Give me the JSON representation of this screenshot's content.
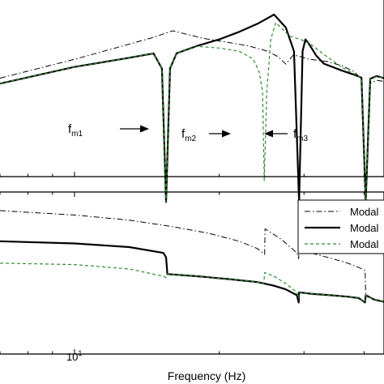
{
  "chart_data": [
    {
      "type": "line",
      "xscale": "log",
      "xlim": [
        7.0,
        44.0
      ],
      "grid": false,
      "legend": "none",
      "series": [
        {
          "style": "dash-dot",
          "color": "#000000",
          "x": [
            7.0,
            10.0,
            14.5,
            16.0,
            18.5,
            21.0,
            23.0,
            25.0,
            26.5,
            27.5,
            28.5,
            29.5,
            30.5,
            31.5,
            33.5,
            36.0,
            38.0,
            39.5,
            40.3,
            41.2,
            42.5,
            44.0
          ],
          "y": [
            -1.0,
            2.5,
            6.5,
            7.8,
            6.4,
            5.6,
            5.0,
            4.1,
            3.0,
            1.6,
            3.3,
            3.0,
            2.6,
            2.4,
            2.1,
            1.3,
            0.3,
            -1.1,
            -24.0,
            -1.9,
            -1.4,
            -1.6
          ]
        },
        {
          "style": "solid",
          "color": "#000000",
          "x": [
            7.0,
            10.0,
            13.0,
            14.6,
            15.2,
            15.5,
            15.8,
            16.3,
            18.0,
            20.0,
            22.0,
            24.0,
            26.0,
            27.5,
            28.6,
            29.3,
            29.8,
            30.2,
            30.7,
            31.2,
            31.8,
            33.0,
            36.0,
            38.0,
            39.5,
            40.3,
            41.2,
            42.5,
            44.0
          ],
          "y": [
            -2.0,
            1.1,
            2.8,
            3.6,
            0.8,
            -24.0,
            0.8,
            3.6,
            5.0,
            6.2,
            7.6,
            9.1,
            10.8,
            8.4,
            4.0,
            -24.0,
            4.0,
            6.2,
            5.4,
            4.4,
            3.2,
            1.7,
            0.4,
            -0.3,
            -0.9,
            -24.0,
            -1.1,
            -0.6,
            -1.0
          ]
        },
        {
          "style": "dashed",
          "color": "#2e8b2e",
          "x": [
            7.0,
            10.0,
            13.0,
            14.6,
            15.2,
            15.5,
            15.8,
            16.3,
            18.0,
            20.0,
            22.0,
            23.5,
            24.2,
            24.6,
            24.8,
            25.1,
            25.6,
            26.2,
            27.0,
            28.0,
            29.5,
            31.0,
            33.0,
            36.0,
            38.0,
            39.5,
            40.3,
            41.2,
            42.5,
            44.0
          ],
          "y": [
            -2.0,
            1.1,
            2.8,
            3.6,
            0.8,
            -24.0,
            0.8,
            3.6,
            4.9,
            4.6,
            4.0,
            2.6,
            0.2,
            -3.5,
            -20.0,
            -3.5,
            6.2,
            9.3,
            8.2,
            6.8,
            6.2,
            5.3,
            3.4,
            1.0,
            -0.1,
            -1.0,
            -24.0,
            -1.2,
            -0.7,
            -1.0
          ]
        }
      ],
      "annotations": [
        {
          "main": "f",
          "sub": "m1",
          "x": 15.5
        },
        {
          "main": "f",
          "sub": "m2",
          "x": 24.8
        },
        {
          "main": "f",
          "sub": "m3",
          "x": 29.3
        }
      ]
    },
    {
      "type": "line",
      "xscale": "log",
      "xlim": [
        7.0,
        44.0
      ],
      "xlabel": "Frequency  (Hz)",
      "grid": false,
      "legend": "top-right",
      "x_ticks": [
        {
          "value": 10,
          "base": "10",
          "exp": "1"
        }
      ],
      "series": [
        {
          "name": "Modal",
          "style": "dash-dot",
          "color": "#000000",
          "x": [
            7.0,
            10.0,
            13.0,
            16.0,
            19.0,
            22.0,
            24.0,
            24.85,
            24.9,
            27.0,
            29.0,
            29.25,
            29.3,
            31.0,
            34.0,
            37.0,
            39.0,
            40.2,
            40.3,
            42.0,
            44.0
          ],
          "y": [
            -8.0,
            -8.6,
            -9.3,
            -10.2,
            -11.1,
            -12.2,
            -13.2,
            -14.0,
            -10.5,
            -12.0,
            -13.8,
            -14.6,
            -12.3,
            -13.8,
            -14.5,
            -15.2,
            -15.8,
            -16.2,
            -19.5,
            -20.2,
            -20.5
          ]
        },
        {
          "name": "Modal",
          "style": "solid",
          "color": "#000000",
          "x": [
            7.0,
            10.0,
            13.0,
            15.3,
            15.5,
            15.6,
            18.0,
            21.0,
            24.0,
            26.0,
            27.5,
            29.0,
            29.25,
            29.3,
            31.0,
            34.0,
            37.0,
            39.0,
            40.2,
            40.3,
            42.0,
            44.0
          ],
          "y": [
            -12.2,
            -12.5,
            -13.0,
            -13.8,
            -14.4,
            -16.7,
            -17.0,
            -17.4,
            -17.8,
            -18.3,
            -18.8,
            -19.6,
            -20.6,
            -19.2,
            -19.4,
            -19.6,
            -19.8,
            -20.0,
            -20.6,
            -19.6,
            -20.2,
            -20.5
          ]
        },
        {
          "name": "Modal",
          "style": "dashed",
          "color": "#2e8b2e",
          "x": [
            7.0,
            10.0,
            13.0,
            15.3,
            15.5,
            15.6,
            18.0,
            21.0,
            24.0,
            24.75,
            24.85,
            26.0,
            27.5,
            29.0,
            29.25,
            29.3,
            31.0,
            34.0,
            37.0,
            39.0,
            40.2,
            40.3,
            42.0,
            44.0
          ],
          "y": [
            -15.2,
            -15.4,
            -16.0,
            -17.0,
            -17.2,
            -16.7,
            -17.0,
            -17.4,
            -17.8,
            -18.0,
            -16.5,
            -17.0,
            -18.0,
            -19.2,
            -20.0,
            -19.2,
            -19.4,
            -19.6,
            -19.8,
            -20.0,
            -20.6,
            -19.6,
            -20.2,
            -20.5
          ]
        }
      ]
    }
  ]
}
